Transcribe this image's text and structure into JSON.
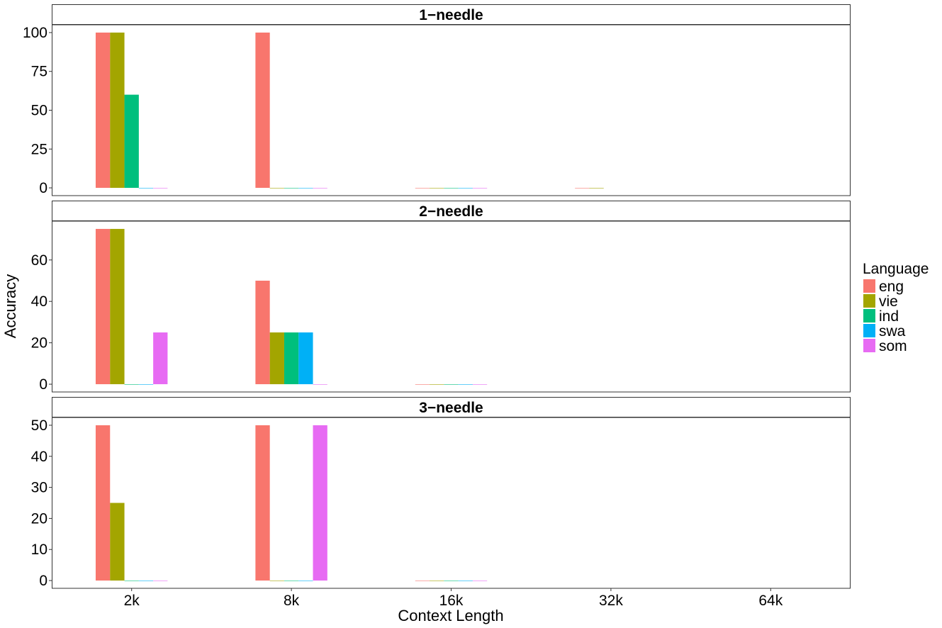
{
  "chart_data": {
    "type": "bar",
    "xlabel": "Context Length",
    "ylabel": "Accuracy",
    "categories": [
      "2k",
      "8k",
      "16k",
      "32k",
      "64k"
    ],
    "legend": {
      "title": "Language",
      "position": "right",
      "entries": [
        {
          "name": "eng",
          "color": "#F8766D"
        },
        {
          "name": "vie",
          "color": "#A3A500"
        },
        {
          "name": "ind",
          "color": "#00BF7D"
        },
        {
          "name": "swa",
          "color": "#00B0F6"
        },
        {
          "name": "som",
          "color": "#E76BF3"
        }
      ]
    },
    "panels": [
      {
        "title": "1−needle",
        "ylim": [
          -5,
          105
        ],
        "yticks": [
          0,
          25,
          50,
          75,
          100
        ],
        "series": [
          {
            "name": "eng",
            "values": [
              100,
              100,
              0,
              0,
              null
            ]
          },
          {
            "name": "vie",
            "values": [
              100,
              0,
              0,
              0,
              null
            ]
          },
          {
            "name": "ind",
            "values": [
              60,
              0,
              0,
              null,
              null
            ]
          },
          {
            "name": "swa",
            "values": [
              0,
              0,
              0,
              null,
              null
            ]
          },
          {
            "name": "som",
            "values": [
              0,
              0,
              0,
              null,
              null
            ]
          }
        ]
      },
      {
        "title": "2−needle",
        "ylim": [
          -3.75,
          78.75
        ],
        "yticks": [
          0,
          20,
          40,
          60
        ],
        "series": [
          {
            "name": "eng",
            "values": [
              75,
              50,
              0,
              null,
              null
            ]
          },
          {
            "name": "vie",
            "values": [
              75,
              25,
              0,
              null,
              null
            ]
          },
          {
            "name": "ind",
            "values": [
              0,
              25,
              0,
              null,
              null
            ]
          },
          {
            "name": "swa",
            "values": [
              0,
              25,
              0,
              null,
              null
            ]
          },
          {
            "name": "som",
            "values": [
              25,
              0,
              0,
              null,
              null
            ]
          }
        ]
      },
      {
        "title": "3−needle",
        "ylim": [
          -2.5,
          52.5
        ],
        "yticks": [
          0,
          10,
          20,
          30,
          40,
          50
        ],
        "series": [
          {
            "name": "eng",
            "values": [
              50,
              50,
              0,
              null,
              null
            ]
          },
          {
            "name": "vie",
            "values": [
              25,
              0,
              0,
              null,
              null
            ]
          },
          {
            "name": "ind",
            "values": [
              0,
              0,
              0,
              null,
              null
            ]
          },
          {
            "name": "swa",
            "values": [
              0,
              0,
              0,
              null,
              null
            ]
          },
          {
            "name": "som",
            "values": [
              0,
              50,
              0,
              null,
              null
            ]
          }
        ]
      }
    ]
  }
}
